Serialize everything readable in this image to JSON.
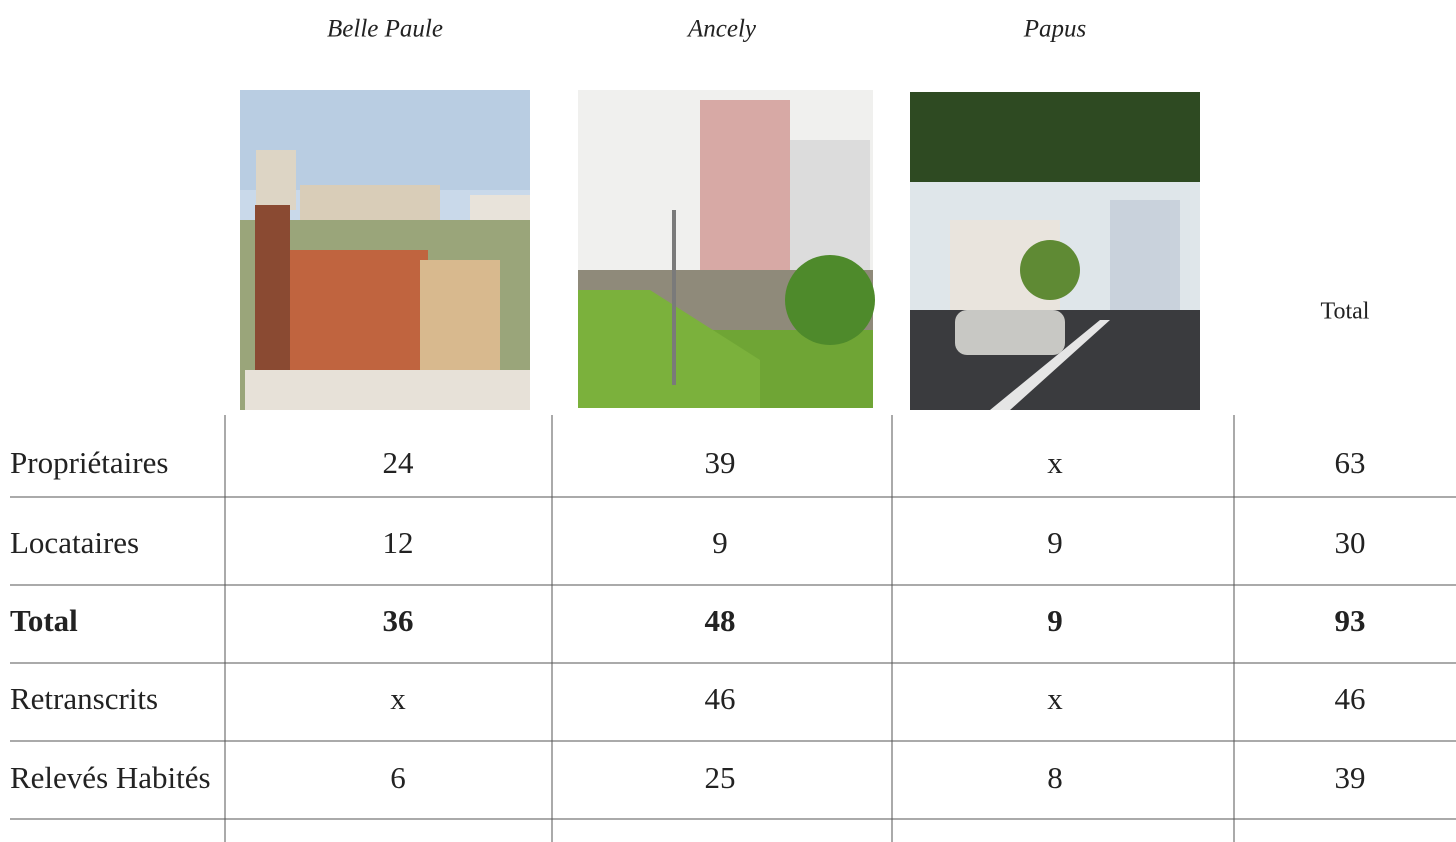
{
  "header": {
    "columns": [
      "Belle Paule",
      "Ancely",
      "Papus"
    ],
    "total": "Total"
  },
  "table": {
    "rows": [
      {
        "label": "Propriétaires",
        "cells": [
          24,
          39,
          "x",
          63
        ]
      },
      {
        "label": "Locataires",
        "cells": [
          12,
          9,
          9,
          30
        ]
      },
      {
        "label": "Total",
        "cells": [
          36,
          48,
          9,
          93
        ],
        "bold": true
      },
      {
        "label": "Retranscrits",
        "cells": [
          "x",
          46,
          "x",
          46
        ]
      },
      {
        "label": "Relevés Habités",
        "cells": [
          6,
          25,
          8,
          39
        ]
      }
    ]
  }
}
